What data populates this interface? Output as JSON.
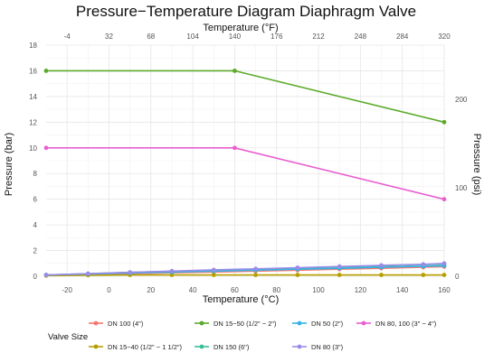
{
  "chart_data": {
    "type": "line",
    "title": "Pressure−Temperature Diagram Diaphragm Valve",
    "xlabel": "Temperature (°C)",
    "ylabel": "Pressure (bar)",
    "x2label": "Temperature (°F)",
    "y2label": "Pressure (psi)",
    "xlim": [
      -30,
      160
    ],
    "ylim": [
      0,
      18
    ],
    "x_ticks": [
      -20,
      0,
      20,
      40,
      60,
      80,
      100,
      120,
      140,
      160
    ],
    "y_ticks": [
      0,
      2,
      4,
      6,
      8,
      10,
      12,
      14,
      16,
      18
    ],
    "x2_ticks": [
      -4,
      32,
      68,
      104,
      140,
      176,
      212,
      248,
      284,
      320
    ],
    "y2_ticks": [
      0,
      100,
      200
    ],
    "grid": true,
    "legend_position": "bottom",
    "legend_title": "Valve Size",
    "series": [
      {
        "name": "DN 100 (4\")",
        "color": "#F8766D",
        "x": [
          -30,
          -10,
          10,
          30,
          50,
          70,
          90,
          110,
          130,
          150,
          160
        ],
        "y": [
          0.1,
          0.15,
          0.2,
          0.27,
          0.33,
          0.4,
          0.47,
          0.55,
          0.62,
          0.7,
          0.75
        ]
      },
      {
        "name": "DN 15−40 (1/2\" − 1 1/2\")",
        "color": "#B79F00",
        "x": [
          -30,
          -10,
          10,
          30,
          50,
          70,
          90,
          110,
          130,
          150,
          160
        ],
        "y": [
          0.05,
          0.08,
          0.1,
          0.1,
          0.1,
          0.1,
          0.1,
          0.1,
          0.1,
          0.1,
          0.1
        ]
      },
      {
        "name": "DN 15−50 (1/2\" − 2\")",
        "color": "#5BAA2B",
        "x": [
          -30,
          60,
          160
        ],
        "y": [
          16,
          16,
          12
        ]
      },
      {
        "name": "DN 150 (6\")",
        "color": "#3BBE9A",
        "x": [
          -30,
          -10,
          10,
          30,
          50,
          70,
          90,
          110,
          130,
          150,
          160
        ],
        "y": [
          0.1,
          0.2,
          0.3,
          0.38,
          0.45,
          0.55,
          0.63,
          0.72,
          0.8,
          0.9,
          0.95
        ]
      },
      {
        "name": "DN 50 (2\")",
        "color": "#33B3E6",
        "x": [
          -30,
          -10,
          10,
          30,
          50,
          70,
          90,
          110,
          130,
          150,
          160
        ],
        "y": [
          0.1,
          0.17,
          0.25,
          0.32,
          0.4,
          0.47,
          0.55,
          0.62,
          0.7,
          0.78,
          0.82
        ]
      },
      {
        "name": "DN 80 (3\")",
        "color": "#9C8BE6",
        "x": [
          -30,
          -10,
          10,
          30,
          50,
          70,
          90,
          110,
          130,
          150,
          160
        ],
        "y": [
          0.1,
          0.2,
          0.3,
          0.4,
          0.5,
          0.58,
          0.67,
          0.76,
          0.85,
          0.93,
          1.0
        ]
      },
      {
        "name": "DN 80, 100 (3\" − 4\")",
        "color": "#E85FD0",
        "x": [
          -30,
          60,
          160
        ],
        "y": [
          10,
          10,
          6
        ]
      }
    ]
  }
}
